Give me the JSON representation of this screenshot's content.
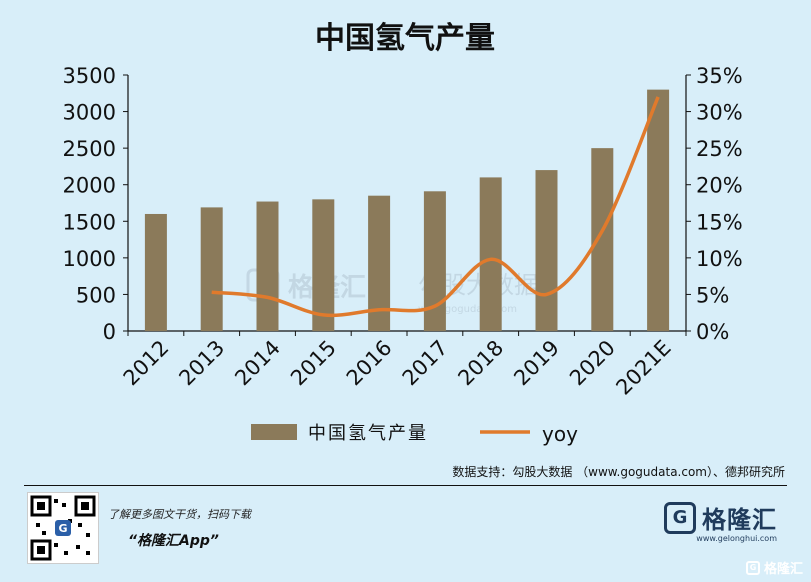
{
  "chart_data": {
    "type": "bar",
    "title": "中国氢气产量",
    "categories": [
      "2012",
      "2013",
      "2014",
      "2015",
      "2016",
      "2017",
      "2018",
      "2019",
      "2020",
      "2021E"
    ],
    "series": [
      {
        "name": "中国氢气产量",
        "type": "bar",
        "axis": "left",
        "color": "#8b7a5a",
        "values": [
          1600,
          1690,
          1770,
          1800,
          1850,
          1910,
          2100,
          2200,
          2500,
          3300
        ]
      },
      {
        "name": "yoy",
        "type": "line",
        "axis": "right",
        "color": "#e07a2c",
        "values": [
          null,
          5.3,
          4.6,
          2.2,
          2.9,
          3.4,
          9.8,
          5.0,
          13.7,
          32.0
        ]
      }
    ],
    "ylim_left": [
      0,
      3500
    ],
    "yticks_left": [
      "0",
      "500",
      "1000",
      "1500",
      "2000",
      "2500",
      "3000",
      "3500"
    ],
    "ylim_right": [
      0,
      35
    ],
    "yticks_right": [
      "0%",
      "5%",
      "10%",
      "15%",
      "20%",
      "25%",
      "30%",
      "35%"
    ],
    "legend_position": "bottom-center",
    "grid": false
  },
  "watermark": {
    "brand": "格隆汇",
    "partner": "勾股大数据",
    "url": "www.gogudata.com"
  },
  "footer": {
    "source": "数据支持：勾股大数据 （www.gogudata.com）、德邦研究所",
    "promo_line": "了解更多图文干货，扫码下载",
    "promo_app": "“格隆汇App”",
    "logo_text": "格隆汇",
    "logo_url": "www.gelonghui.com",
    "corner_mark": "格隆汇",
    "logo_icon": "g-logo-icon"
  }
}
